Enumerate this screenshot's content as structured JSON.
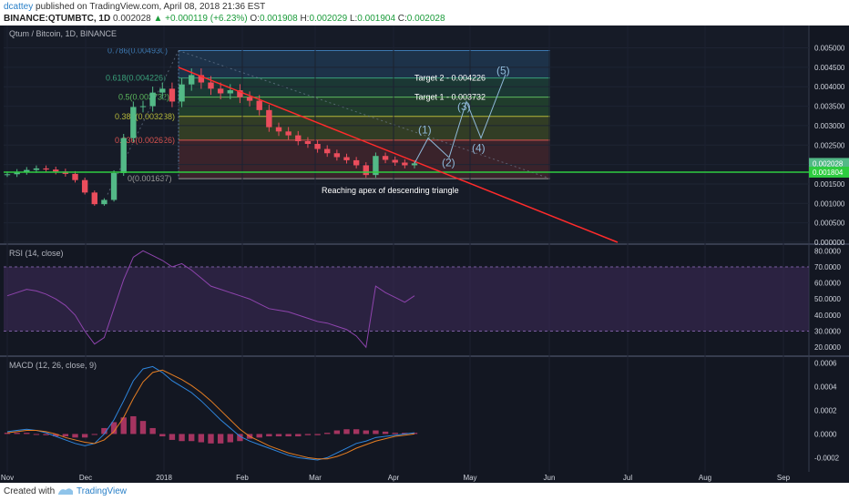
{
  "header": {
    "author": "dcattey",
    "published": " published on TradingView.com, April 08, 2018 21:36 EST",
    "symbol": "BINANCE:QTUMBTC, 1D",
    "last": " 0.002028 ",
    "change": "▲ +0.000119 (+6.23%)",
    "ohlc_o": " O:",
    "ohlc_o_val": "0.001908",
    "ohlc_h": " H:",
    "ohlc_h_val": "0.002029",
    "ohlc_l": " L:",
    "ohlc_l_val": "0.001904",
    "ohlc_c": " C:",
    "ohlc_c_val": "0.002028"
  },
  "footer": {
    "created_with": "Created with",
    "brand": "TradingView"
  },
  "colors": {
    "background": "#131722",
    "up": "#53b987",
    "down": "#eb4d5c",
    "fib_top": "#2b4a6a",
    "trendline": "#ff2b2b",
    "support": "#2ecc40",
    "rsi_band": "#3c2a56",
    "rsi_line": "#8e44ad",
    "macd_line": "#2e86de",
    "signal_line": "#e67e22",
    "histogram": "#c0396b",
    "wave": "#8fb8d8"
  },
  "chart_data": [
    {
      "type": "candlestick",
      "title": "Qtum / Bitcoin, 1D, BINANCE",
      "x_tick_labels": [
        "Nov",
        "Dec",
        "2018",
        "Feb",
        "Mar",
        "Apr",
        "May",
        "Jun",
        "Jul",
        "Aug",
        "Sep"
      ],
      "y_tick_labels": [
        "0.005000",
        "0.004500",
        "0.004000",
        "0.003500",
        "0.003000",
        "0.002500",
        "0.002000",
        "0.001500",
        "0.001000",
        "0.000500",
        "0.000000"
      ],
      "ylim": [
        0.0,
        0.0052
      ],
      "last_price_label": "0.002028",
      "support_label": "0.001804",
      "support_level": 0.001804,
      "fib_levels": [
        {
          "label": "0.786(0.004930)",
          "value": 0.00493
        },
        {
          "label": "0.618(0.004226)",
          "value": 0.004226
        },
        {
          "label": "0.5(0.003732)",
          "value": 0.003732
        },
        {
          "label": "0.382(0.003238)",
          "value": 0.003238
        },
        {
          "label": "0.236(0.002626)",
          "value": 0.002626
        },
        {
          "label": "0(0.001637)",
          "value": 0.001637
        }
      ],
      "annotations": [
        {
          "text": "Target 2 - 0.004226"
        },
        {
          "text": "Target 1 - 0.003732"
        },
        {
          "text": "Reaching apex of descending triangle"
        },
        {
          "text": "(1)"
        },
        {
          "text": "(2)"
        },
        {
          "text": "(3)"
        },
        {
          "text": "(4)"
        },
        {
          "text": "(5)"
        }
      ],
      "close_series": [
        0.00175,
        0.00181,
        0.00186,
        0.0019,
        0.00187,
        0.00182,
        0.00176,
        0.0016,
        0.00128,
        0.00098,
        0.00109,
        0.00178,
        0.00268,
        0.00348,
        0.0035,
        0.00385,
        0.00395,
        0.00362,
        0.00406,
        0.0043,
        0.00411,
        0.00395,
        0.00383,
        0.00391,
        0.00373,
        0.00364,
        0.0034,
        0.00296,
        0.00285,
        0.00275,
        0.0026,
        0.00253,
        0.0024,
        0.00229,
        0.00219,
        0.00211,
        0.00198,
        0.00173,
        0.00222,
        0.00212,
        0.00205,
        0.00198,
        0.00203
      ],
      "projected_wave": [
        0.00203,
        0.00268,
        0.00218,
        0.00362,
        0.00268,
        0.00432
      ]
    },
    {
      "type": "line",
      "title": "RSI (14, close)",
      "y_tick_labels": [
        "80.0000",
        "70.0000",
        "60.0000",
        "50.0000",
        "40.0000",
        "30.0000",
        "20.0000"
      ],
      "ylim": [
        15,
        83
      ],
      "band": [
        30,
        70
      ],
      "values": [
        52,
        54,
        56,
        55,
        53,
        50,
        46,
        40,
        30,
        22,
        26,
        44,
        62,
        76,
        80,
        77,
        74,
        70,
        72,
        68,
        63,
        58,
        56,
        54,
        52,
        50,
        47,
        44,
        43,
        42,
        40,
        38,
        36,
        35,
        33,
        31,
        27,
        20,
        58,
        54,
        51,
        48,
        52
      ]
    },
    {
      "type": "bar+line",
      "title": "MACD (12, 26, close, 9)",
      "y_tick_labels": [
        "0.0006",
        "0.0004",
        "0.0002",
        "0.0000",
        "-0.0002"
      ],
      "ylim": [
        -0.00032,
        0.00065
      ],
      "series": [
        {
          "name": "MACD",
          "values": [
            2e-05,
            3e-05,
            4e-05,
            3e-05,
            1e-05,
            -2e-05,
            -5e-05,
            -8e-05,
            -0.0001,
            -8e-05,
            0.0,
            0.00012,
            0.00028,
            0.00045,
            0.00055,
            0.00057,
            0.00052,
            0.00045,
            0.0004,
            0.00035,
            0.00028,
            0.0002,
            0.00012,
            5e-05,
            -2e-05,
            -6e-05,
            -9e-05,
            -0.00012,
            -0.00015,
            -0.00018,
            -0.0002,
            -0.00021,
            -0.00022,
            -0.0002,
            -0.00016,
            -0.00012,
            -8e-05,
            -6e-05,
            -3e-05,
            -2e-05,
            -1e-05,
            0.0,
            1e-05
          ]
        },
        {
          "name": "Signal",
          "values": [
            1e-05,
            2e-05,
            3e-05,
            3e-05,
            2e-05,
            0.0,
            -3e-05,
            -5e-05,
            -7e-05,
            -8e-05,
            -5e-05,
            2e-05,
            0.00014,
            0.0003,
            0.00044,
            0.00052,
            0.00054,
            0.0005,
            0.00046,
            0.00041,
            0.00035,
            0.00028,
            0.0002,
            0.00012,
            4e-05,
            -2e-05,
            -6e-05,
            -0.0001,
            -0.00013,
            -0.00016,
            -0.00018,
            -0.0002,
            -0.00021,
            -0.00021,
            -0.00019,
            -0.00016,
            -0.00012,
            -9e-05,
            -6e-05,
            -4e-05,
            -2e-05,
            -1e-05,
            0.0
          ]
        }
      ]
    }
  ]
}
